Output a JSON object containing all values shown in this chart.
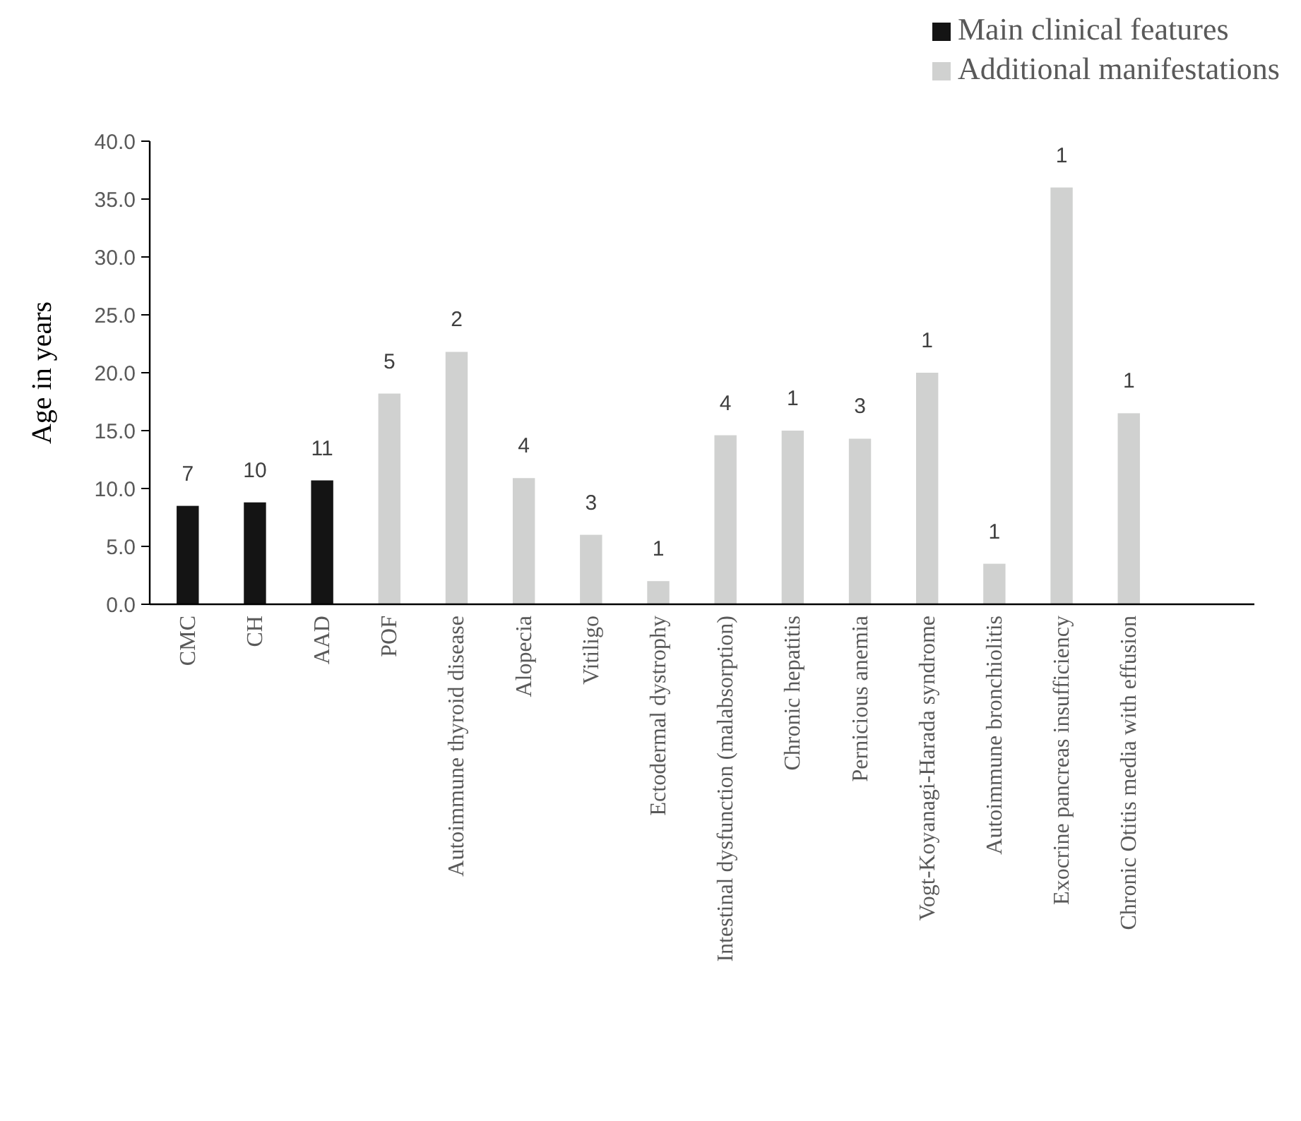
{
  "chart_data": {
    "type": "bar",
    "ylabel": "Age in years",
    "categories": [
      "CMC",
      "CH",
      "AAD",
      "POF",
      "Autoimmune thyroid disease",
      "Alopecia",
      "Vitiligo",
      "Ectodermal dystrophy",
      "Intestinal dysfunction (malabsorption)",
      "Chronic hepatitis",
      "Pernicious anemia",
      "Vogt-Koyanagi-Harada syndrome",
      "Autoimmune bronchiolitis",
      "Exocrine pancreas insufficiency",
      "Chronic Otitis media with effusion"
    ],
    "series": [
      {
        "name": "Main clinical features",
        "color": "#141414",
        "values": [
          8.5,
          8.8,
          10.7,
          null,
          null,
          null,
          null,
          null,
          null,
          null,
          null,
          null,
          null,
          null,
          null
        ]
      },
      {
        "name": "Additional manifestations",
        "color": "#d0d1d0",
        "values": [
          null,
          null,
          null,
          18.2,
          21.8,
          10.9,
          6.0,
          2.0,
          14.6,
          15.0,
          14.3,
          20.0,
          3.5,
          36.0,
          16.5
        ]
      }
    ],
    "annotations": [
      {
        "text": "7",
        "x": "CMC",
        "y": 8.5
      },
      {
        "text": "10",
        "x": "CH",
        "y": 8.8
      },
      {
        "text": "11",
        "x": "AAD",
        "y": 10.7
      },
      {
        "text": "5",
        "x": "POF",
        "y": 18.2
      },
      {
        "text": "2",
        "x": "Autoimmune thyroid disease",
        "y": 21.8
      },
      {
        "text": "4",
        "x": "Alopecia",
        "y": 10.9
      },
      {
        "text": "3",
        "x": "Vitiligo",
        "y": 6.0
      },
      {
        "text": "1",
        "x": "Ectodermal dystrophy",
        "y": 2.0
      },
      {
        "text": "4",
        "x": "Intestinal dysfunction (malabsorption)",
        "y": 14.6
      },
      {
        "text": "1",
        "x": "Chronic hepatitis",
        "y": 15.0
      },
      {
        "text": "3",
        "x": "Pernicious anemia",
        "y": 14.3
      },
      {
        "text": "1",
        "x": "Vogt-Koyanagi-Harada syndrome",
        "y": 20.0
      },
      {
        "text": "1",
        "x": "Autoimmune bronchiolitis",
        "y": 3.5
      },
      {
        "text": "1",
        "x": "Exocrine pancreas insufficiency",
        "y": 36.0
      },
      {
        "text": "1",
        "x": "Chronic Otitis media with effusion",
        "y": 16.5
      }
    ],
    "ylim": [
      0,
      40
    ],
    "yticks": [
      {
        "value": 0,
        "label": "0.0"
      },
      {
        "value": 5,
        "label": "5.0"
      },
      {
        "value": 10,
        "label": "10.0"
      },
      {
        "value": 15,
        "label": "15.0"
      },
      {
        "value": 20,
        "label": "20.0"
      },
      {
        "value": 25,
        "label": "25.0"
      },
      {
        "value": 30,
        "label": "30.0"
      },
      {
        "value": 35,
        "label": "35.0"
      },
      {
        "value": 40,
        "label": "40.0"
      }
    ],
    "legend": "top right"
  }
}
